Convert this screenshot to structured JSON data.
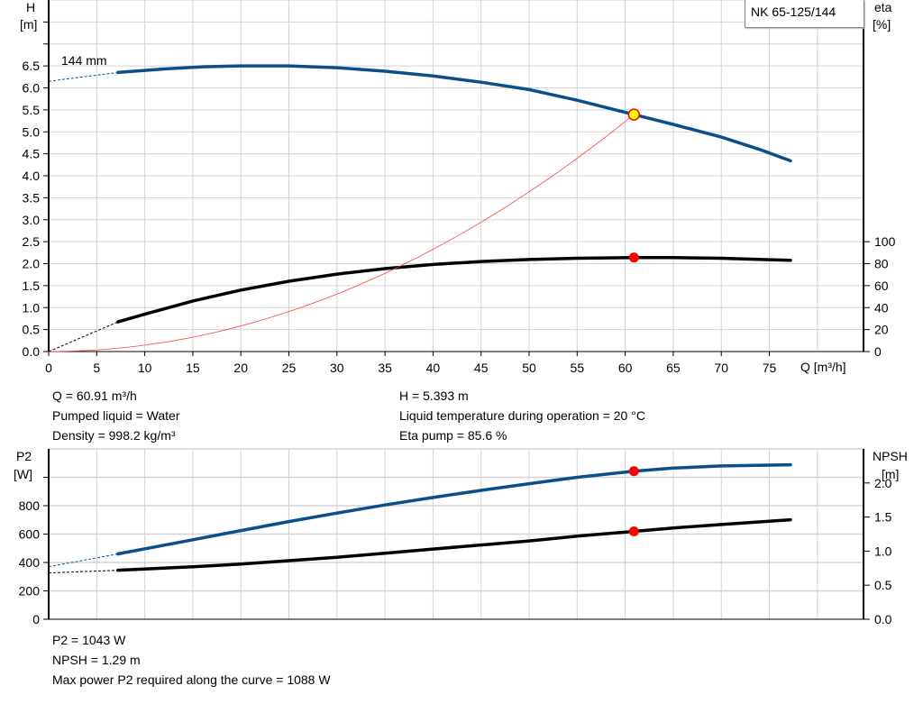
{
  "chart_data": [
    {
      "type": "line",
      "title": "NK 65-125/144",
      "xlabel": "Q [m³/h]",
      "ylabel_left": [
        "H",
        "[m]"
      ],
      "ylabel_right": [
        "eta",
        "[%]"
      ],
      "xlim": [
        0,
        84.8
      ],
      "ylim_left": [
        0,
        8
      ],
      "ylim_right": [
        0,
        320
      ],
      "grid": true,
      "x_ticks": [
        0,
        5,
        10,
        15,
        20,
        25,
        30,
        35,
        40,
        45,
        50,
        55,
        60,
        65,
        70,
        75
      ],
      "y_left_ticks": [
        "0.0",
        "0.5",
        "1.0",
        "1.5",
        "2.0",
        "2.5",
        "3.0",
        "3.5",
        "4.0",
        "4.5",
        "5.0",
        "5.5",
        "6.0",
        "6.5"
      ],
      "y_right_ticks": [
        "0",
        "20",
        "40",
        "60",
        "80",
        "100"
      ],
      "curve_label": "144 mm",
      "series": [
        {
          "key": "H",
          "axis": "left",
          "color": "#0b4f8a",
          "width": 3.5,
          "dashed": [
            [
              0,
              6.15
            ],
            [
              7.2,
              6.35
            ]
          ],
          "points": [
            [
              7.2,
              6.35
            ],
            [
              12,
              6.43
            ],
            [
              16,
              6.48
            ],
            [
              20,
              6.5
            ],
            [
              25,
              6.5
            ],
            [
              30,
              6.46
            ],
            [
              35,
              6.38
            ],
            [
              40,
              6.27
            ],
            [
              45,
              6.13
            ],
            [
              50,
              5.96
            ],
            [
              55,
              5.72
            ],
            [
              60.91,
              5.393
            ],
            [
              65,
              5.17
            ],
            [
              70,
              4.88
            ],
            [
              74,
              4.6
            ],
            [
              77.2,
              4.34
            ]
          ]
        },
        {
          "key": "eta",
          "axis": "right",
          "color": "#000000",
          "width": 3.5,
          "dashed": [
            [
              0,
              0
            ],
            [
              7.2,
              27
            ]
          ],
          "points": [
            [
              7.2,
              27
            ],
            [
              10,
              34
            ],
            [
              15,
              46
            ],
            [
              20,
              56
            ],
            [
              25,
              64
            ],
            [
              30,
              70.5
            ],
            [
              35,
              75.5
            ],
            [
              40,
              79.3
            ],
            [
              45,
              82
            ],
            [
              50,
              83.8
            ],
            [
              55,
              84.9
            ],
            [
              60.91,
              85.6
            ],
            [
              65,
              85.5
            ],
            [
              70,
              84.9
            ],
            [
              75,
              83.6
            ],
            [
              77.2,
              83
            ]
          ]
        },
        {
          "key": "system",
          "axis": "left",
          "color": "#ff4040",
          "width": 0.8,
          "curve": "quadratic-through-duty-point",
          "points": [
            [
              0,
              0
            ],
            [
              60.91,
              5.393
            ]
          ]
        }
      ],
      "duty_point": {
        "Q": 60.91,
        "H": 5.393,
        "eta": 85.6
      }
    },
    {
      "type": "line",
      "ylabel_left": [
        "P2",
        "[W]"
      ],
      "ylabel_right": [
        "NPSH",
        "[m]"
      ],
      "xlim": [
        0,
        84.8
      ],
      "ylim_left": [
        0,
        1200
      ],
      "ylim_right": [
        0,
        2.5
      ],
      "grid": true,
      "y_left_ticks": [
        "0",
        "200",
        "400",
        "600",
        "800"
      ],
      "y_right_ticks": [
        "0.0",
        "0.5",
        "1.0",
        "1.5",
        "2.0"
      ],
      "series": [
        {
          "key": "P2",
          "axis": "left",
          "color": "#0b4f8a",
          "width": 3.5,
          "dashed": [
            [
              0,
              370
            ],
            [
              7.2,
              460
            ]
          ],
          "points": [
            [
              7.2,
              460
            ],
            [
              15,
              560
            ],
            [
              20,
              625
            ],
            [
              25,
              688
            ],
            [
              30,
              748
            ],
            [
              35,
              805
            ],
            [
              40,
              858
            ],
            [
              45,
              908
            ],
            [
              50,
              955
            ],
            [
              55,
              1000
            ],
            [
              60.91,
              1043
            ],
            [
              65,
              1065
            ],
            [
              70,
              1080
            ],
            [
              77.2,
              1088
            ]
          ]
        },
        {
          "key": "NPSH",
          "axis": "right",
          "color": "#000000",
          "width": 3.5,
          "dashed": [
            [
              0,
              0.68
            ],
            [
              7.2,
              0.72
            ]
          ],
          "points": [
            [
              7.2,
              0.72
            ],
            [
              15,
              0.77
            ],
            [
              20,
              0.81
            ],
            [
              25,
              0.86
            ],
            [
              30,
              0.91
            ],
            [
              35,
              0.97
            ],
            [
              40,
              1.03
            ],
            [
              45,
              1.09
            ],
            [
              50,
              1.15
            ],
            [
              55,
              1.22
            ],
            [
              60.91,
              1.29
            ],
            [
              65,
              1.34
            ],
            [
              70,
              1.39
            ],
            [
              77.2,
              1.46
            ]
          ]
        }
      ],
      "duty_point": {
        "Q": 60.91,
        "P2": 1043,
        "NPSH": 1.29
      }
    }
  ],
  "info_top": {
    "q": "Q = 60.91 m³/h",
    "liquid": "Pumped liquid = Water",
    "density": "Density = 998.2 kg/m³",
    "h": "H = 5.393 m",
    "temp": "Liquid temperature during operation = 20 °C",
    "eta": "Eta pump = 85.6 %"
  },
  "info_bottom": {
    "p2": "P2 = 1043 W",
    "npsh": "NPSH = 1.29 m",
    "maxp2": "Max power P2 required along the curve = 1088 W"
  },
  "colors": {
    "blue": "#0b4f8a",
    "duty": "#ff0000",
    "duty_fill_main": "#ffff00",
    "grid": "#d3d3d3"
  }
}
